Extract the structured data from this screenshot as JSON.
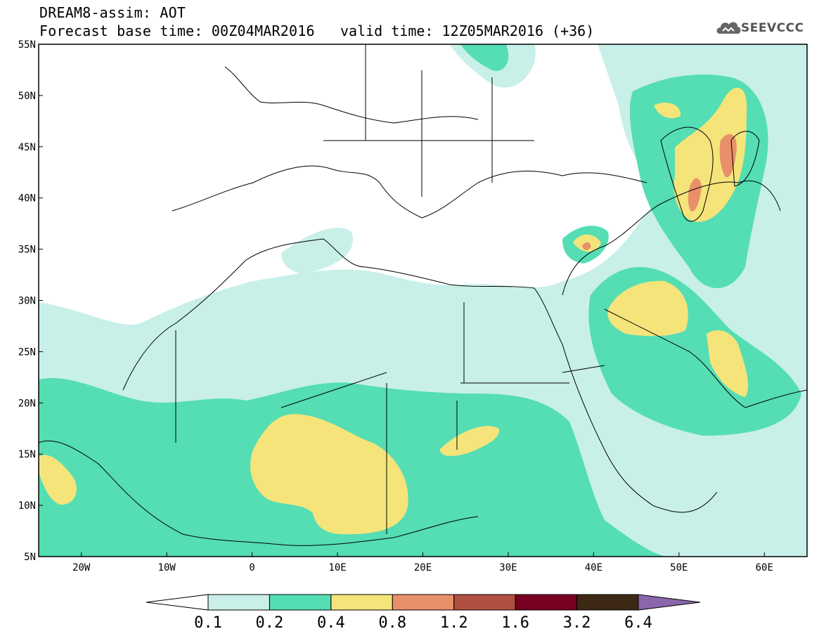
{
  "header": {
    "model_title": "DREAM8-assim: AOT",
    "base_time": "Forecast base time: 00Z04MAR2016",
    "valid_time": "valid time: 12Z05MAR2016 (+36)",
    "logo_text": "SEEVCCC"
  },
  "map": {
    "projection": "lat-lon",
    "lon_range": [
      -25,
      65
    ],
    "lat_range": [
      5,
      55
    ],
    "lat_ticks": [
      "5N",
      "10N",
      "15N",
      "20N",
      "25N",
      "30N",
      "35N",
      "40N",
      "45N",
      "50N",
      "55N"
    ],
    "lon_ticks": [
      "20W",
      "10W",
      "0",
      "10E",
      "20E",
      "30E",
      "40E",
      "50E",
      "60E"
    ]
  },
  "colorbar": {
    "labels": [
      "0.1",
      "0.2",
      "0.4",
      "0.8",
      "1.2",
      "1.6",
      "3.2",
      "6.4"
    ],
    "colors": [
      "#ffffff",
      "#c8f0e8",
      "#55ddb4",
      "#f5e47a",
      "#e8906a",
      "#b05040",
      "#780020",
      "#3c2814",
      "#8a66aa"
    ]
  }
}
